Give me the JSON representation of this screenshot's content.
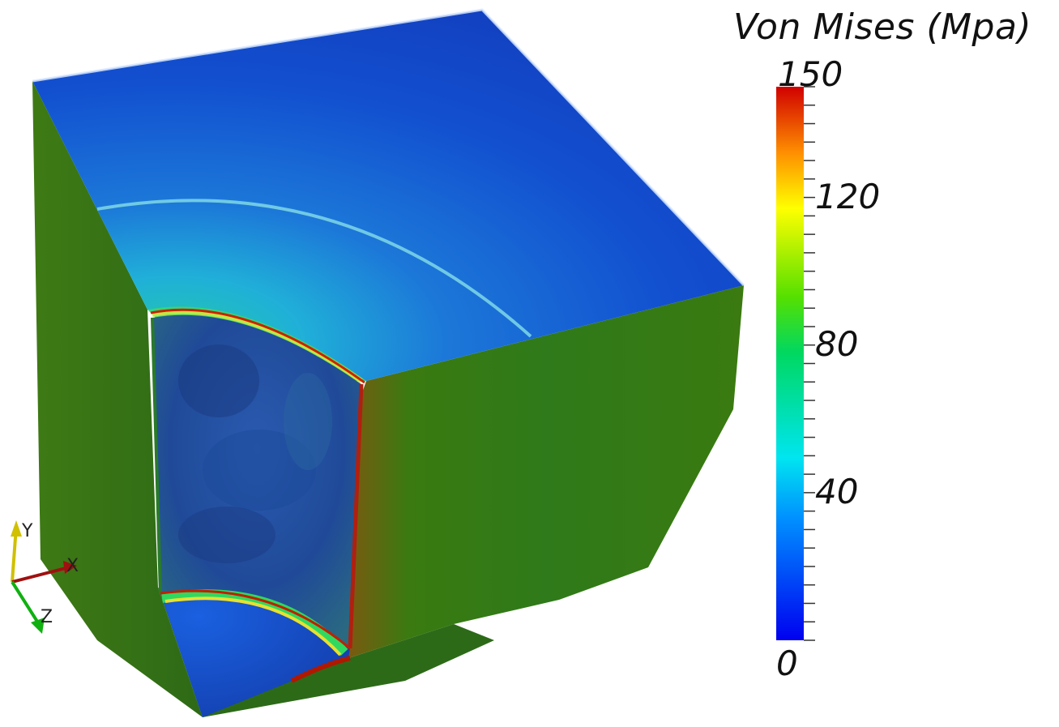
{
  "colorbar": {
    "title": "Von Mises (Mpa)",
    "min": 0,
    "max": 150,
    "labels": [
      "150",
      "120",
      "80",
      "40",
      "0"
    ],
    "label_values": [
      150,
      120,
      80,
      40,
      0
    ]
  },
  "axes_triad": {
    "x_label": "X",
    "y_label": "Y",
    "z_label": "Z"
  },
  "colors": {
    "low": "#0000ff",
    "mid_low": "#00e5ff",
    "mid": "#00cc00",
    "mid_high": "#ffff00",
    "high": "#cc0000"
  }
}
